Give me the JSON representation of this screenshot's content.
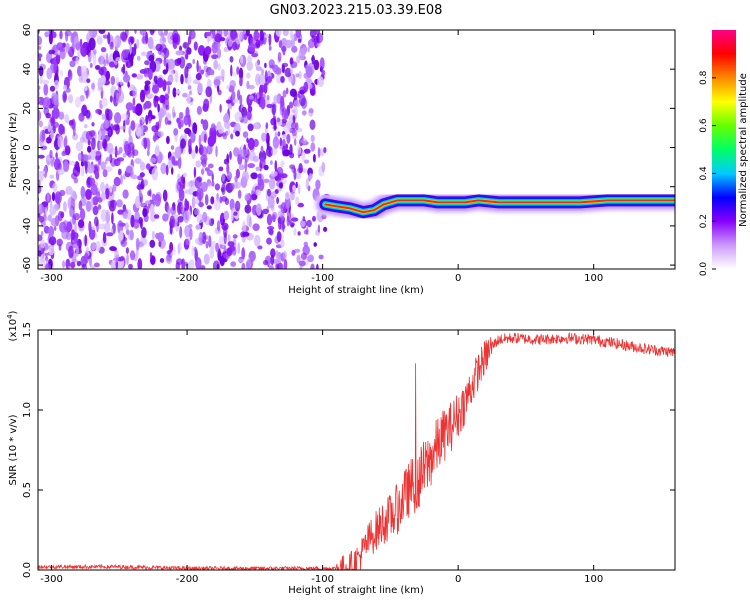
{
  "figure": {
    "title": "GN03.2023.215.03.39.E08"
  },
  "chart_data": [
    {
      "type": "heatmap",
      "panel": "spectrogram",
      "xlabel": "Height of straight line (km)",
      "ylabel": "Frequency (Hz)",
      "xlim": [
        -310,
        160
      ],
      "ylim": [
        -62,
        60
      ],
      "x_ticks": [
        -300,
        -200,
        -100,
        0,
        100
      ],
      "y_ticks": [
        -60,
        -40,
        -20,
        0,
        20,
        40,
        60
      ],
      "colorbar": {
        "label": "Normalized spectral amplitude",
        "range": [
          0,
          1
        ],
        "ticks": [
          "0.0",
          "0.2",
          "0.4",
          "0.6",
          "0.8"
        ],
        "colors": [
          "#ffffff",
          "#cc99ff",
          "#8800ff",
          "#0000ff",
          "#00ccff",
          "#00ff66",
          "#66ff00",
          "#ffff00",
          "#ff8800",
          "#ff0000",
          "#ff0088"
        ]
      },
      "noise_region": {
        "x": [
          -310,
          -95
        ],
        "y": [
          -62,
          60
        ]
      },
      "signal_band": {
        "x": [
          -98,
          -90,
          -80,
          -70,
          -62,
          -55,
          -45,
          -35,
          -25,
          -15,
          -5,
          5,
          15,
          30,
          60,
          90,
          110,
          130,
          160
        ],
        "y": [
          -29,
          -30,
          -31,
          -33,
          -32,
          -29,
          -27,
          -27,
          -27,
          -28,
          -28,
          -28,
          -27,
          -28,
          -28,
          -28,
          -27,
          -27,
          -27
        ]
      }
    },
    {
      "type": "line",
      "panel": "snr",
      "xlabel": "Height of straight line (km)",
      "ylabel": "SNR (10 * v/v)",
      "scale_label": "(x10",
      "scale_exp": "4",
      "scale_close": ")",
      "xlim": [
        -310,
        160
      ],
      "ylim": [
        0,
        1.5
      ],
      "x_ticks": [
        -300,
        -200,
        -100,
        0,
        100
      ],
      "y_ticks": [
        "0.0",
        "0.5",
        "1.0",
        "1.5"
      ],
      "line_color": "#ee3333",
      "series": [
        {
          "x": [
            -310,
            -250,
            -200,
            -150,
            -100,
            -90,
            -80,
            -75,
            -70,
            -65,
            -60,
            -55,
            -50,
            -45,
            -40,
            -35,
            -30,
            -25,
            -20,
            -15,
            -10,
            -5,
            0,
            5,
            10,
            15,
            20,
            25,
            30,
            40,
            60,
            80,
            100,
            120,
            140,
            160
          ],
          "values": [
            0.02,
            0.02,
            0.01,
            0.01,
            0.01,
            0.01,
            0.02,
            0.06,
            0.12,
            0.2,
            0.25,
            0.3,
            0.33,
            0.38,
            0.45,
            0.52,
            0.55,
            0.62,
            0.7,
            0.78,
            0.85,
            0.9,
            0.97,
            1.05,
            1.15,
            1.25,
            1.33,
            1.4,
            1.44,
            1.45,
            1.44,
            1.45,
            1.44,
            1.41,
            1.38,
            1.36
          ]
        }
      ]
    }
  ]
}
